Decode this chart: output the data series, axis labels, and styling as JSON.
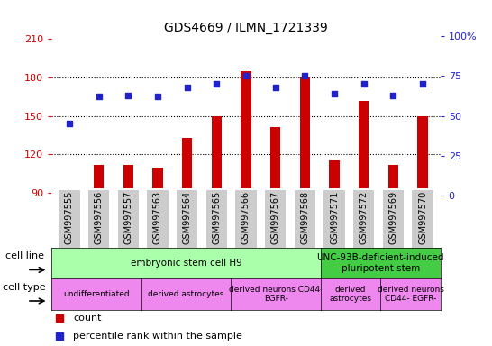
{
  "title": "GDS4669 / ILMN_1721339",
  "samples": [
    "GSM997555",
    "GSM997556",
    "GSM997557",
    "GSM997563",
    "GSM997564",
    "GSM997565",
    "GSM997566",
    "GSM997567",
    "GSM997568",
    "GSM997571",
    "GSM997572",
    "GSM997569",
    "GSM997570"
  ],
  "counts": [
    92,
    112,
    112,
    110,
    133,
    150,
    185,
    141,
    180,
    115,
    162,
    112,
    150
  ],
  "percentiles": [
    45,
    62,
    63,
    62,
    68,
    70,
    75,
    68,
    75,
    64,
    70,
    63,
    70
  ],
  "ylim_left": [
    88,
    212
  ],
  "ylim_right": [
    0,
    100
  ],
  "yticks_left": [
    90,
    120,
    150,
    180,
    210
  ],
  "yticks_right": [
    0,
    25,
    50,
    75,
    100
  ],
  "bar_color": "#cc0000",
  "dot_color": "#2222cc",
  "cell_line_groups": [
    {
      "label": "embryonic stem cell H9",
      "start": 0,
      "end": 9,
      "color": "#aaffaa"
    },
    {
      "label": "UNC-93B-deficient-induced\npluripotent stem",
      "start": 9,
      "end": 13,
      "color": "#44cc44"
    }
  ],
  "cell_type_groups": [
    {
      "label": "undifferentiated",
      "start": 0,
      "end": 3,
      "color": "#ee88ee"
    },
    {
      "label": "derived astrocytes",
      "start": 3,
      "end": 6,
      "color": "#ee88ee"
    },
    {
      "label": "derived neurons CD44-\nEGFR-",
      "start": 6,
      "end": 9,
      "color": "#ee88ee"
    },
    {
      "label": "derived\nastrocytes",
      "start": 9,
      "end": 11,
      "color": "#ee88ee"
    },
    {
      "label": "derived neurons\nCD44- EGFR-",
      "start": 11,
      "end": 13,
      "color": "#ee88ee"
    }
  ],
  "legend_count_color": "#cc0000",
  "legend_dot_color": "#2222cc",
  "grid_color": "#000000",
  "label_color_left": "#cc0000",
  "label_color_right": "#2222cc",
  "xtick_bg": "#cccccc",
  "bar_width": 0.35
}
